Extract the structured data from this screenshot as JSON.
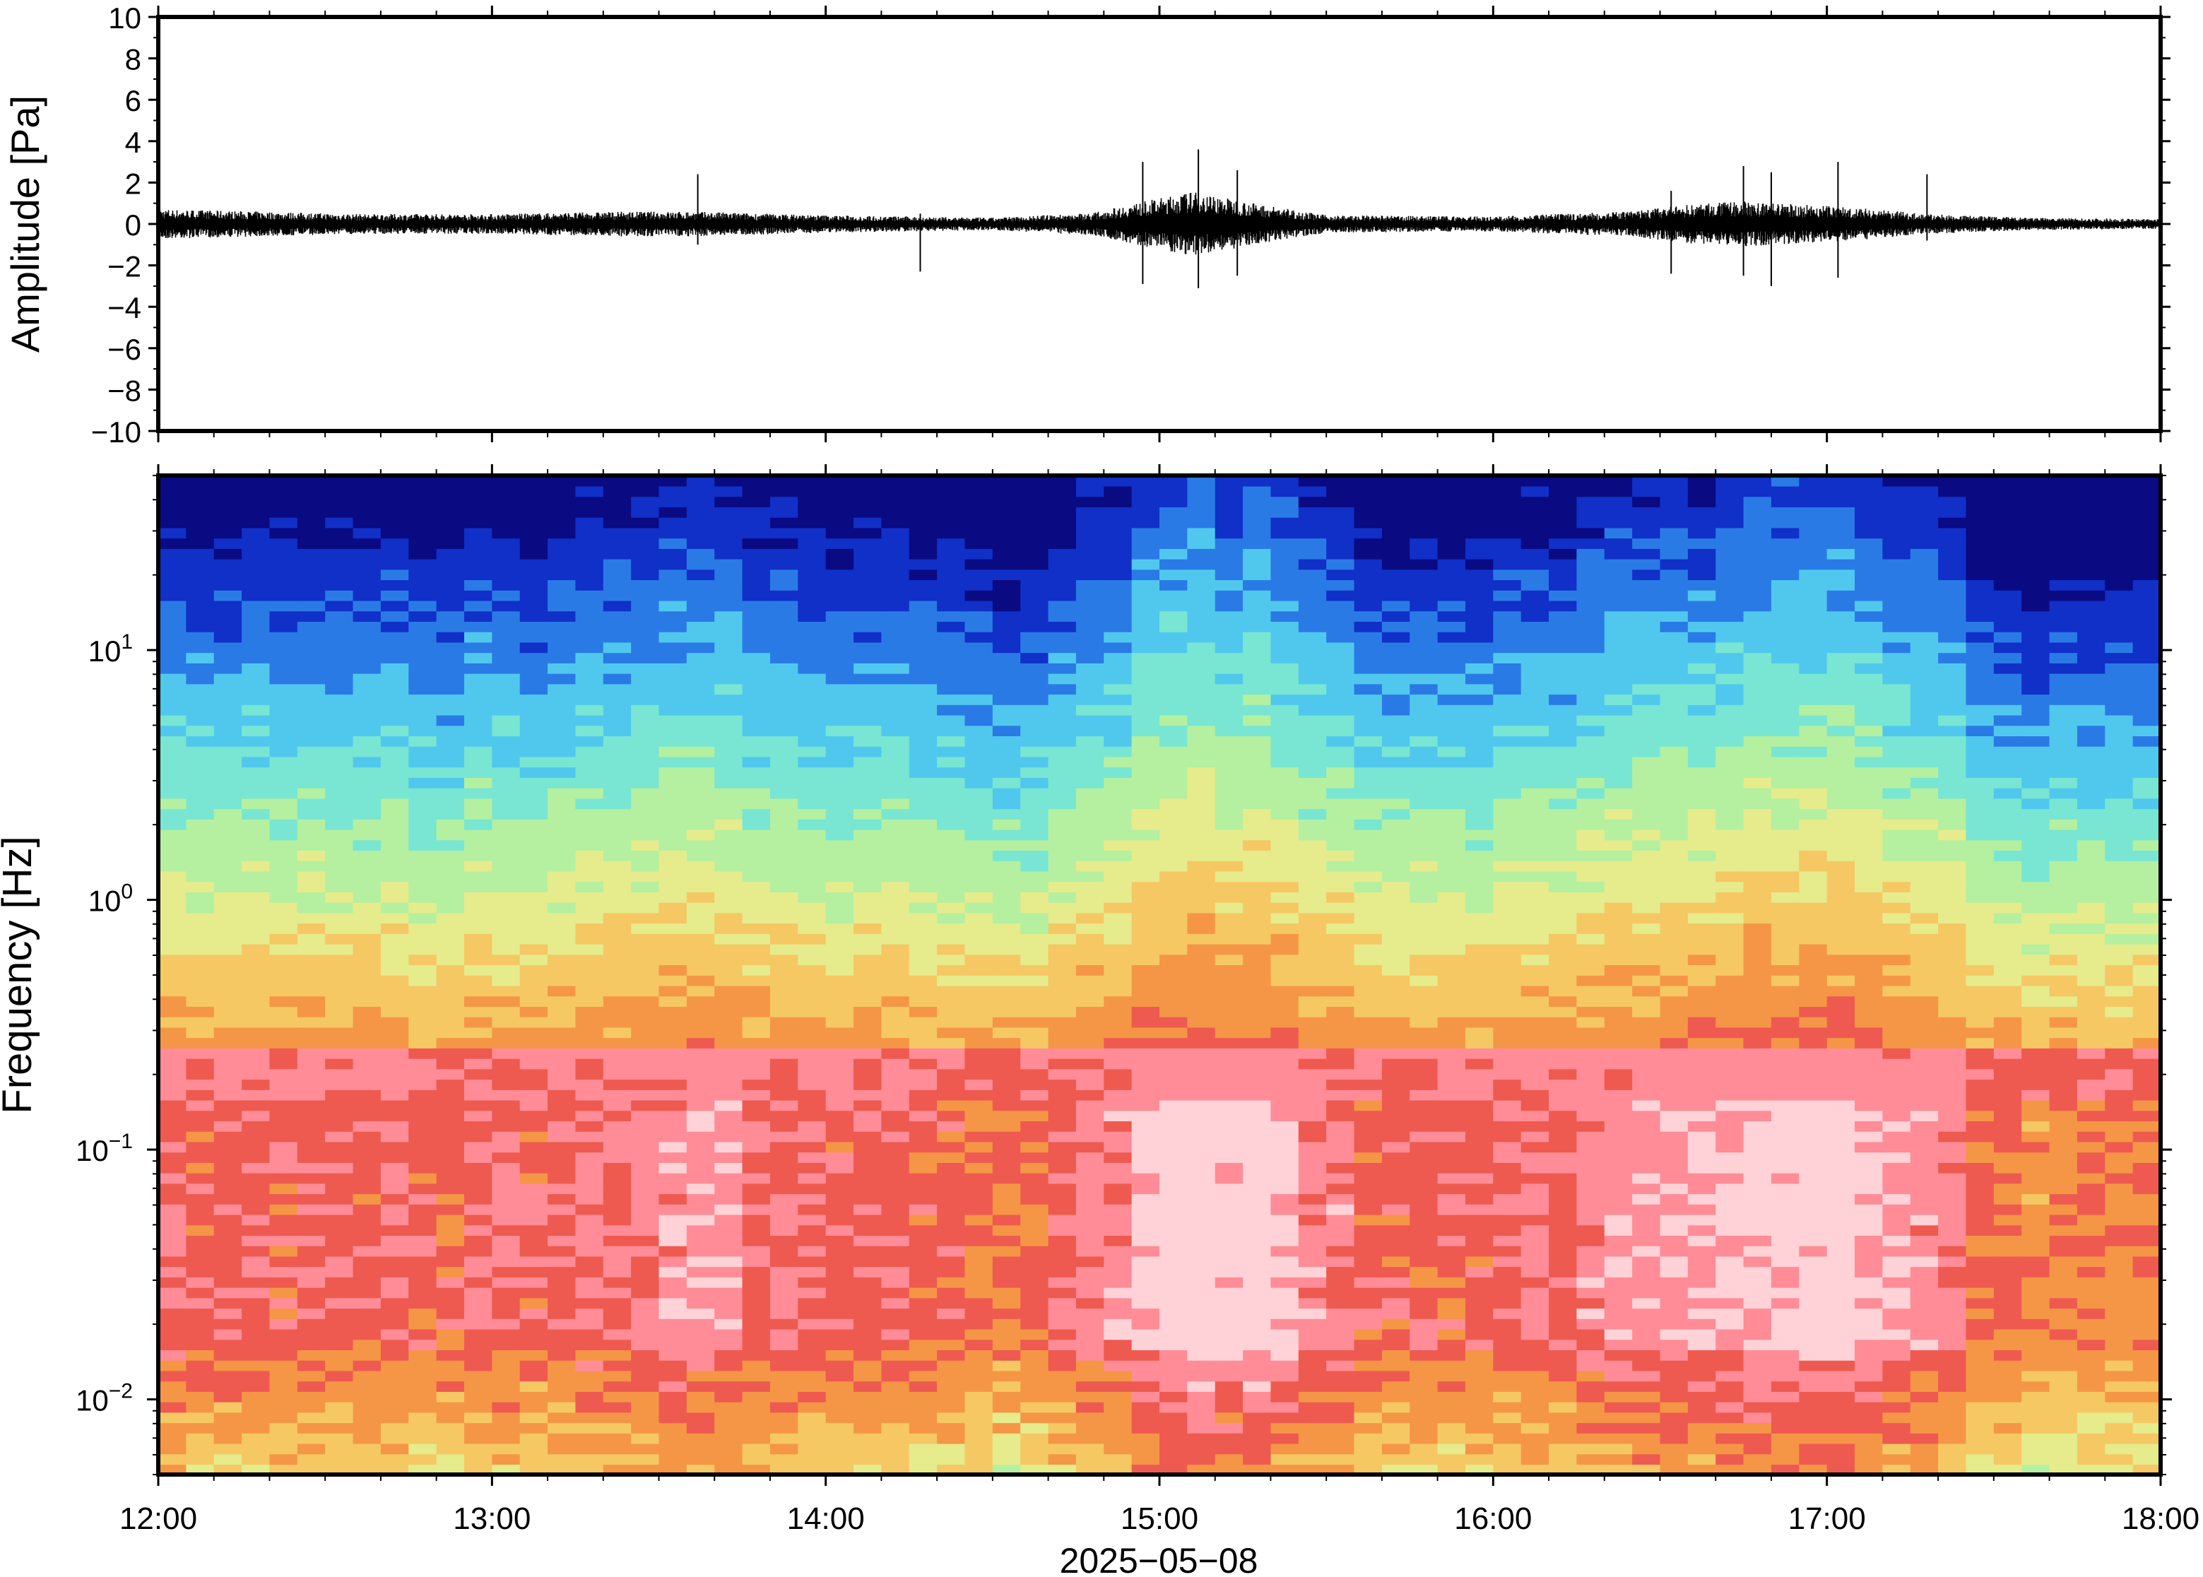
{
  "chart_data": [
    {
      "type": "line",
      "panel": "waveform",
      "ylabel": "Amplitude [Pa]",
      "ylim": [
        -10,
        10
      ],
      "yticks": [
        -10,
        -8,
        -6,
        -4,
        -2,
        0,
        2,
        4,
        6,
        8,
        10
      ],
      "ytick_labels": [
        "−10",
        "−8",
        "−6",
        "−4",
        "−2",
        "0",
        "2",
        "4",
        "6",
        "8",
        "10"
      ],
      "xlim": [
        "12:00",
        "18:00"
      ],
      "grid": false,
      "color": "#000000",
      "envelope": {
        "t_hours": [
          12.0,
          12.3,
          12.6,
          13.0,
          13.4,
          13.6,
          14.0,
          14.5,
          14.8,
          14.95,
          15.1,
          15.3,
          15.5,
          16.0,
          16.4,
          16.6,
          16.75,
          16.9,
          17.05,
          17.3,
          17.6,
          18.0
        ],
        "amplitude_pa": [
          0.6,
          0.5,
          0.4,
          0.4,
          0.5,
          0.5,
          0.35,
          0.25,
          0.45,
          0.9,
          1.3,
          0.8,
          0.35,
          0.3,
          0.5,
          0.8,
          0.9,
          0.8,
          0.7,
          0.4,
          0.25,
          0.2
        ]
      },
      "spikes": [
        {
          "t": "13:37",
          "min": -1.0,
          "max": 2.4
        },
        {
          "t": "14:17",
          "min": -2.3,
          "max": 0.5
        },
        {
          "t": "14:57",
          "min": -2.9,
          "max": 3.0
        },
        {
          "t": "15:07",
          "min": -3.1,
          "max": 3.6
        },
        {
          "t": "15:14",
          "min": -2.5,
          "max": 2.6
        },
        {
          "t": "16:32",
          "min": -2.4,
          "max": 1.6
        },
        {
          "t": "16:45",
          "min": -2.5,
          "max": 2.8
        },
        {
          "t": "16:50",
          "min": -3.0,
          "max": 2.5
        },
        {
          "t": "17:02",
          "min": -2.6,
          "max": 3.0
        },
        {
          "t": "17:18",
          "min": -0.8,
          "max": 2.4
        }
      ]
    },
    {
      "type": "heatmap",
      "panel": "spectrogram",
      "ylabel": "Frequency [Hz]",
      "yscale": "log",
      "ylim": [
        0.005,
        50
      ],
      "yticks": [
        0.01,
        0.1,
        1,
        10
      ],
      "ytick_labels": [
        {
          "base": "10",
          "exp": "−2"
        },
        {
          "base": "10",
          "exp": "−1"
        },
        {
          "base": "10",
          "exp": "0"
        },
        {
          "base": "10",
          "exp": "1"
        }
      ],
      "xlabel": "2025−05−08",
      "xlim": [
        "12:00",
        "18:00"
      ],
      "xticks": [
        "12:00",
        "13:00",
        "14:00",
        "15:00",
        "16:00",
        "17:00",
        "18:00"
      ],
      "colormap": [
        "#0a0a82",
        "#1030c8",
        "#2a7ae6",
        "#50c8ee",
        "#78e6d2",
        "#b4f0a0",
        "#e6eb8c",
        "#f5c864",
        "#f59646",
        "#ee5a50",
        "#ff8c96",
        "#ffd2d7"
      ],
      "activity_profile": {
        "t_hours": [
          12.0,
          12.5,
          13.0,
          13.3,
          13.5,
          13.7,
          14.0,
          14.4,
          14.55,
          14.8,
          15.0,
          15.15,
          15.35,
          15.6,
          15.9,
          16.2,
          16.5,
          16.7,
          16.85,
          17.05,
          17.35,
          17.45,
          17.7,
          18.0
        ],
        "relative_power": [
          0.55,
          0.5,
          0.48,
          0.62,
          0.7,
          0.68,
          0.45,
          0.5,
          0.35,
          0.6,
          0.9,
          0.97,
          0.85,
          0.55,
          0.4,
          0.6,
          0.7,
          0.88,
          0.93,
          0.85,
          0.7,
          0.35,
          0.3,
          0.3
        ]
      }
    }
  ]
}
